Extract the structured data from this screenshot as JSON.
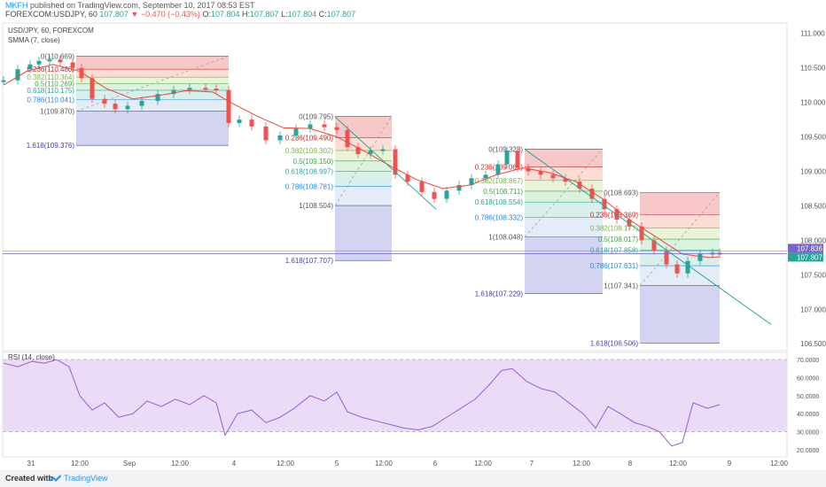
{
  "header": {
    "author": "MKFH",
    "published": "published on TradingView.com, September 10, 2017 08:53 EST",
    "symbol": "FOREXCOM:USDJPY, 60",
    "price": "107.807",
    "change": "▼ −0.470 (−0.43%)",
    "o_label": "O:",
    "o": "107.804",
    "h_label": "H:",
    "h": "107.807",
    "l_label": "L:",
    "l": "107.804",
    "c_label": "C:",
    "c": "107.807"
  },
  "legend": {
    "title": "USD/JPY, 60, FOREXCOM",
    "study": "SMMA (7, close)"
  },
  "rsi_label": "RSI (14, close)",
  "footer": {
    "created_with": "Created with",
    "brand": "TradingView"
  },
  "colors": {
    "up": "#26a69a",
    "down": "#ef5350",
    "smma": "#f44336",
    "rsi": "#9c5bd6",
    "rsi_band": "#eadcf7",
    "trend": "#26a69a",
    "hline": "#7b62c9",
    "fib_0": "#f4b6b6",
    "fib_236": "#f8d2c7",
    "fib_382": "#e1efc8",
    "fib_5": "#cfeed4",
    "fib_618": "#cbe9e6",
    "fib_786": "#dbe6f4",
    "fib_1": "#e5e5e5",
    "fib_ext": "#c4c4ee"
  },
  "chart_data": [
    {
      "type": "line",
      "title": "USD/JPY, 60, FOREXCOM",
      "x_ticks": [
        "31",
        "12:00",
        "Sep",
        "12:00",
        "4",
        "12:00",
        "5",
        "12:00",
        "6",
        "12:00",
        "7",
        "12:00",
        "8",
        "12:00",
        "9",
        "12:00"
      ],
      "y_ticks": [
        "111.000",
        "110.500",
        "110.000",
        "109.500",
        "109.000",
        "108.500",
        "108.000",
        "107.500",
        "107.000",
        "106.500"
      ],
      "ylim": [
        106.4,
        111.15
      ],
      "current_price": 107.807,
      "marker_prices": [
        "107.836",
        "107.807"
      ],
      "horizontal_line": 107.807,
      "series": [
        {
          "name": "USD/JPY",
          "x": [
            4,
            20,
            34,
            44,
            56,
            68,
            82,
            92,
            104,
            118,
            130,
            144,
            160,
            178,
            196,
            214,
            232,
            244,
            258,
            270,
            284,
            300,
            316,
            334,
            350,
            366,
            380,
            392,
            404,
            418,
            432,
            446,
            460,
            476,
            490,
            504,
            518,
            532,
            548,
            562,
            572,
            584,
            596,
            610,
            624,
            638,
            654,
            668,
            682,
            696,
            710,
            724,
            738,
            752,
            764,
            776,
            790,
            804,
            812
          ],
          "y": [
            110.32,
            110.48,
            110.55,
            110.6,
            110.62,
            110.58,
            110.5,
            110.35,
            110.05,
            109.98,
            109.9,
            109.95,
            110.02,
            110.12,
            110.18,
            110.21,
            110.2,
            110.18,
            109.7,
            109.75,
            109.65,
            109.45,
            109.52,
            109.62,
            109.68,
            109.64,
            109.6,
            109.35,
            109.25,
            109.3,
            109.32,
            108.95,
            108.85,
            108.7,
            108.6,
            108.72,
            108.8,
            108.9,
            108.95,
            109.1,
            109.3,
            109.05,
            109.0,
            108.95,
            108.9,
            108.85,
            108.75,
            108.6,
            108.45,
            108.3,
            108.2,
            108.0,
            107.85,
            107.65,
            107.52,
            107.7,
            107.8,
            107.82,
            107.81
          ]
        },
        {
          "name": "SMMA (7, close)",
          "x": [
            4,
            30,
            60,
            90,
            120,
            150,
            180,
            210,
            240,
            260,
            290,
            320,
            350,
            380,
            410,
            440,
            470,
            500,
            530,
            560,
            590,
            620,
            650,
            680,
            710,
            740,
            770,
            800,
            812
          ],
          "y": [
            110.25,
            110.45,
            110.55,
            110.45,
            110.2,
            110.05,
            110.1,
            110.17,
            110.15,
            110.0,
            109.8,
            109.63,
            109.62,
            109.5,
            109.3,
            109.08,
            108.88,
            108.75,
            108.8,
            108.95,
            109.05,
            108.98,
            108.85,
            108.6,
            108.3,
            108.05,
            107.8,
            107.75,
            107.76
          ]
        }
      ],
      "fibonacci": [
        {
          "levels": [
            {
              "ratio": "0",
              "value": "110.669"
            },
            {
              "ratio": "0.236",
              "value": "110.480"
            },
            {
              "ratio": "0.382",
              "value": "110.364"
            },
            {
              "ratio": "0.5",
              "value": "110.269"
            },
            {
              "ratio": "0.618",
              "value": "110.175"
            },
            {
              "ratio": "0.786",
              "value": "110.041"
            },
            {
              "ratio": "1",
              "value": "109.870"
            },
            {
              "ratio": "1.618",
              "value": "109.376"
            }
          ]
        },
        {
          "levels": [
            {
              "ratio": "0",
              "value": "109.795"
            },
            {
              "ratio": "0.236",
              "value": "109.490"
            },
            {
              "ratio": "0.382",
              "value": "109.302"
            },
            {
              "ratio": "0.5",
              "value": "109.150"
            },
            {
              "ratio": "0.618",
              "value": "108.997"
            },
            {
              "ratio": "0.786",
              "value": "108.781"
            },
            {
              "ratio": "1",
              "value": "108.504"
            },
            {
              "ratio": "1.618",
              "value": "107.707"
            }
          ]
        },
        {
          "levels": [
            {
              "ratio": "0",
              "value": "109.323"
            },
            {
              "ratio": "0.236",
              "value": "109.061"
            },
            {
              "ratio": "0.382",
              "value": "108.867"
            },
            {
              "ratio": "0.5",
              "value": "108.711"
            },
            {
              "ratio": "0.618",
              "value": "108.554"
            },
            {
              "ratio": "0.786",
              "value": "108.332"
            },
            {
              "ratio": "1",
              "value": "108.048"
            },
            {
              "ratio": "1.618",
              "value": "107.229"
            }
          ]
        },
        {
          "levels": [
            {
              "ratio": "0",
              "value": "108.693"
            },
            {
              "ratio": "0.236",
              "value": "108.369"
            },
            {
              "ratio": "0.382",
              "value": "108.177"
            },
            {
              "ratio": "0.5",
              "value": "108.017"
            },
            {
              "ratio": "0.618",
              "value": "107.858"
            },
            {
              "ratio": "0.786",
              "value": "107.631"
            },
            {
              "ratio": "1",
              "value": "107.341"
            },
            {
              "ratio": "1.618",
              "value": "106.506"
            }
          ]
        }
      ]
    },
    {
      "type": "line",
      "title": "RSI (14, close)",
      "y_ticks": [
        "70.0000",
        "60.0000",
        "50.0000",
        "40.0000",
        "30.0000",
        "20.0000"
      ],
      "ylim": [
        17,
        73
      ],
      "band": [
        30,
        70
      ],
      "series": [
        {
          "name": "RSI (14, close)",
          "x": [
            4,
            20,
            36,
            50,
            64,
            78,
            90,
            104,
            118,
            134,
            150,
            166,
            182,
            198,
            214,
            230,
            244,
            254,
            268,
            284,
            300,
            316,
            332,
            350,
            366,
            380,
            392,
            408,
            424,
            440,
            456,
            472,
            488,
            504,
            520,
            536,
            552,
            566,
            578,
            594,
            610,
            626,
            642,
            658,
            672,
            686,
            700,
            716,
            730,
            744,
            758,
            770,
            782,
            798,
            812
          ],
          "y": [
            68,
            66,
            69,
            68,
            70,
            66,
            50,
            42,
            46,
            38,
            40,
            47,
            44,
            48,
            45,
            50,
            46,
            28,
            40,
            42,
            35,
            38,
            43,
            50,
            47,
            52,
            41,
            38,
            36,
            34,
            32,
            31,
            33,
            38,
            43,
            48,
            56,
            64,
            65,
            58,
            54,
            52,
            46,
            40,
            32,
            44,
            40,
            35,
            33,
            30,
            22,
            24,
            46,
            43,
            45
          ]
        }
      ]
    }
  ]
}
